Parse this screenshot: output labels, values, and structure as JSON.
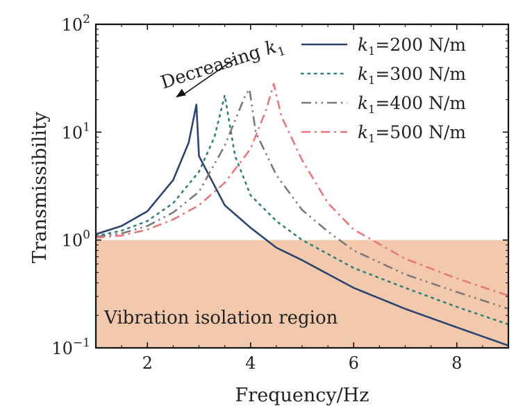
{
  "chart_data": {
    "type": "line",
    "xlabel": "Frequency/Hz",
    "ylabel": "Transmissibility",
    "xlim": [
      1,
      9
    ],
    "ylim": [
      0.1,
      100
    ],
    "yscale": "log",
    "x_ticks": [
      2,
      4,
      6,
      8
    ],
    "x_tick_labels": [
      "2",
      "4",
      "6",
      "8"
    ],
    "y_ticks": [
      0.1,
      1,
      10,
      100
    ],
    "y_tick_labels": [
      {
        "base": "10",
        "exp": "−1"
      },
      {
        "base": "10",
        "exp": "0"
      },
      {
        "base": "10",
        "exp": "1"
      },
      {
        "base": "10",
        "exp": "2"
      }
    ],
    "grid": false,
    "legend_position": "top-right",
    "series": [
      {
        "name": "k₁=200 N/m",
        "legend": {
          "k": "k",
          "sub": "1",
          "rest": "=200 N/m"
        },
        "color": "#2b4470",
        "dash": "solid",
        "resonance_hz": 2.95,
        "peak": 18.0,
        "points": [
          [
            1.0,
            1.13
          ],
          [
            1.5,
            1.35
          ],
          [
            2.0,
            1.85
          ],
          [
            2.5,
            3.6
          ],
          [
            2.8,
            8.0
          ],
          [
            2.95,
            18.0
          ],
          [
            3.0,
            6.0
          ],
          [
            3.5,
            2.1
          ],
          [
            4.0,
            1.3
          ],
          [
            4.5,
            0.85
          ],
          [
            5.0,
            0.65
          ],
          [
            6.0,
            0.36
          ],
          [
            7.0,
            0.23
          ],
          [
            8.0,
            0.155
          ],
          [
            9.0,
            0.105
          ]
        ]
      },
      {
        "name": "k₁=300 N/m",
        "legend": {
          "k": "k",
          "sub": "1",
          "rest": "=300 N/m"
        },
        "color": "#2f7f7a",
        "dash": "dotted",
        "resonance_hz": 3.5,
        "peak": 22.0,
        "points": [
          [
            1.0,
            1.09
          ],
          [
            1.5,
            1.22
          ],
          [
            2.0,
            1.5
          ],
          [
            2.5,
            2.2
          ],
          [
            3.0,
            4.3
          ],
          [
            3.3,
            9.0
          ],
          [
            3.5,
            22.0
          ],
          [
            3.7,
            6.0
          ],
          [
            4.0,
            2.6
          ],
          [
            4.5,
            1.5
          ],
          [
            5.0,
            1.0
          ],
          [
            6.0,
            0.55
          ],
          [
            7.0,
            0.36
          ],
          [
            8.0,
            0.24
          ],
          [
            9.0,
            0.165
          ]
        ]
      },
      {
        "name": "k₁=400 N/m",
        "legend": {
          "k": "k",
          "sub": "1",
          "rest": "=400 N/m"
        },
        "color": "#7f7777",
        "dash": "dashdotdot",
        "resonance_hz": 3.98,
        "peak": 25.0,
        "points": [
          [
            1.0,
            1.07
          ],
          [
            1.5,
            1.15
          ],
          [
            2.0,
            1.35
          ],
          [
            2.5,
            1.8
          ],
          [
            3.0,
            2.8
          ],
          [
            3.5,
            7.5
          ],
          [
            3.9,
            22.0
          ],
          [
            3.98,
            25.0
          ],
          [
            4.1,
            10.0
          ],
          [
            4.5,
            4.0
          ],
          [
            5.0,
            1.9
          ],
          [
            5.5,
            1.2
          ],
          [
            6.0,
            0.8
          ],
          [
            7.0,
            0.48
          ],
          [
            8.0,
            0.33
          ],
          [
            9.0,
            0.23
          ]
        ]
      },
      {
        "name": "k₁=500 N/m",
        "legend": {
          "k": "k",
          "sub": "1",
          "rest": "=500 N/m"
        },
        "color": "#e8767a",
        "dash": "dashdot",
        "resonance_hz": 4.45,
        "peak": 28.0,
        "points": [
          [
            1.0,
            1.05
          ],
          [
            1.5,
            1.1
          ],
          [
            2.0,
            1.25
          ],
          [
            2.5,
            1.55
          ],
          [
            3.0,
            2.1
          ],
          [
            3.5,
            3.4
          ],
          [
            4.0,
            7.0
          ],
          [
            4.3,
            16.0
          ],
          [
            4.45,
            28.0
          ],
          [
            4.6,
            14.0
          ],
          [
            5.0,
            5.5
          ],
          [
            5.5,
            2.2
          ],
          [
            6.0,
            1.25
          ],
          [
            7.0,
            0.67
          ],
          [
            8.0,
            0.44
          ],
          [
            9.0,
            0.305
          ]
        ]
      }
    ],
    "shaded_region": {
      "label": "Vibration isolation region",
      "y_from": 0.1,
      "y_to": 1.0,
      "color": "#f2c9ad"
    },
    "annotation": {
      "text": "Decreasing ",
      "k": "k",
      "sub": "1",
      "arrow_from": {
        "x": 3.7,
        "y": 48
      },
      "arrow_to": {
        "x": 2.55,
        "y": 21
      }
    }
  }
}
